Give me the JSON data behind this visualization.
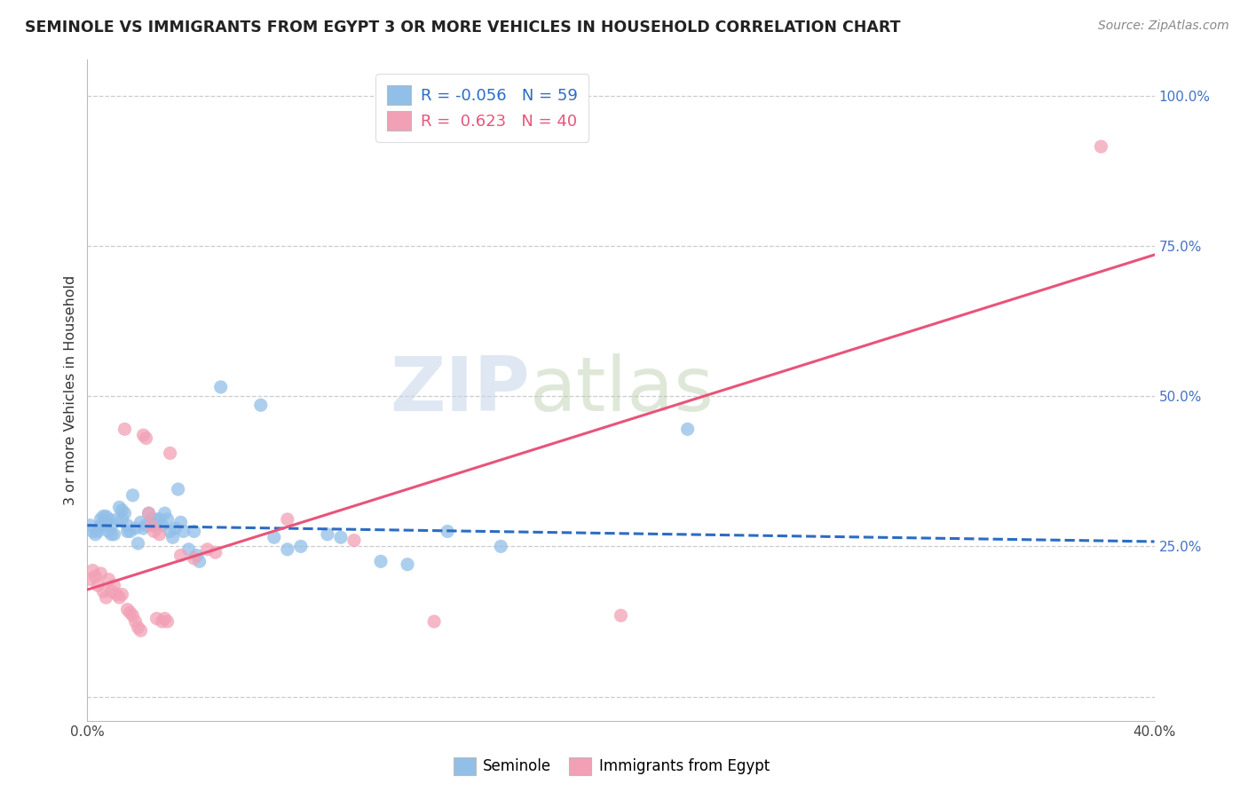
{
  "title": "SEMINOLE VS IMMIGRANTS FROM EGYPT 3 OR MORE VEHICLES IN HOUSEHOLD CORRELATION CHART",
  "source": "Source: ZipAtlas.com",
  "ylabel": "3 or more Vehicles in Household",
  "xmin": 0.0,
  "xmax": 0.4,
  "ymin": -0.04,
  "ymax": 1.06,
  "ytick_vals": [
    0.0,
    0.25,
    0.5,
    0.75,
    1.0
  ],
  "ytick_labels": [
    "",
    "25.0%",
    "50.0%",
    "75.0%",
    "100.0%"
  ],
  "xtick_vals": [
    0.0,
    0.1,
    0.2,
    0.3,
    0.4
  ],
  "xtick_labels": [
    "0.0%",
    "",
    "",
    "",
    "40.0%"
  ],
  "legend_blue_r": "R = -0.056",
  "legend_blue_n": "N = 59",
  "legend_pink_r": "R =  0.623",
  "legend_pink_n": "N = 40",
  "watermark_zip": "ZIP",
  "watermark_atlas": "atlas",
  "seminole_color": "#92BFE8",
  "egypt_color": "#F2A0B5",
  "seminole_line_color": "#2B6CC4",
  "egypt_line_color": "#E8547A",
  "background_color": "#FFFFFF",
  "seminole_dots": [
    [
      0.001,
      0.285
    ],
    [
      0.002,
      0.275
    ],
    [
      0.003,
      0.27
    ],
    [
      0.004,
      0.275
    ],
    [
      0.005,
      0.285
    ],
    [
      0.005,
      0.295
    ],
    [
      0.006,
      0.3
    ],
    [
      0.006,
      0.285
    ],
    [
      0.007,
      0.3
    ],
    [
      0.007,
      0.29
    ],
    [
      0.008,
      0.275
    ],
    [
      0.008,
      0.295
    ],
    [
      0.009,
      0.27
    ],
    [
      0.009,
      0.285
    ],
    [
      0.01,
      0.27
    ],
    [
      0.011,
      0.295
    ],
    [
      0.012,
      0.315
    ],
    [
      0.013,
      0.31
    ],
    [
      0.013,
      0.295
    ],
    [
      0.014,
      0.305
    ],
    [
      0.015,
      0.275
    ],
    [
      0.015,
      0.285
    ],
    [
      0.016,
      0.275
    ],
    [
      0.017,
      0.335
    ],
    [
      0.018,
      0.28
    ],
    [
      0.019,
      0.255
    ],
    [
      0.02,
      0.29
    ],
    [
      0.021,
      0.28
    ],
    [
      0.022,
      0.285
    ],
    [
      0.023,
      0.305
    ],
    [
      0.024,
      0.295
    ],
    [
      0.025,
      0.285
    ],
    [
      0.026,
      0.295
    ],
    [
      0.027,
      0.295
    ],
    [
      0.028,
      0.285
    ],
    [
      0.029,
      0.305
    ],
    [
      0.03,
      0.295
    ],
    [
      0.031,
      0.275
    ],
    [
      0.032,
      0.265
    ],
    [
      0.033,
      0.28
    ],
    [
      0.034,
      0.345
    ],
    [
      0.035,
      0.29
    ],
    [
      0.036,
      0.275
    ],
    [
      0.038,
      0.245
    ],
    [
      0.04,
      0.275
    ],
    [
      0.041,
      0.235
    ],
    [
      0.042,
      0.225
    ],
    [
      0.05,
      0.515
    ],
    [
      0.065,
      0.485
    ],
    [
      0.07,
      0.265
    ],
    [
      0.075,
      0.245
    ],
    [
      0.08,
      0.25
    ],
    [
      0.09,
      0.27
    ],
    [
      0.095,
      0.265
    ],
    [
      0.11,
      0.225
    ],
    [
      0.12,
      0.22
    ],
    [
      0.135,
      0.275
    ],
    [
      0.155,
      0.25
    ],
    [
      0.225,
      0.445
    ]
  ],
  "egypt_dots": [
    [
      0.001,
      0.195
    ],
    [
      0.002,
      0.21
    ],
    [
      0.003,
      0.2
    ],
    [
      0.004,
      0.185
    ],
    [
      0.005,
      0.205
    ],
    [
      0.006,
      0.175
    ],
    [
      0.007,
      0.165
    ],
    [
      0.008,
      0.195
    ],
    [
      0.009,
      0.175
    ],
    [
      0.01,
      0.185
    ],
    [
      0.011,
      0.17
    ],
    [
      0.012,
      0.165
    ],
    [
      0.013,
      0.17
    ],
    [
      0.014,
      0.445
    ],
    [
      0.015,
      0.145
    ],
    [
      0.016,
      0.14
    ],
    [
      0.017,
      0.135
    ],
    [
      0.018,
      0.125
    ],
    [
      0.019,
      0.115
    ],
    [
      0.02,
      0.11
    ],
    [
      0.021,
      0.435
    ],
    [
      0.022,
      0.43
    ],
    [
      0.023,
      0.305
    ],
    [
      0.024,
      0.285
    ],
    [
      0.025,
      0.275
    ],
    [
      0.026,
      0.13
    ],
    [
      0.027,
      0.27
    ],
    [
      0.028,
      0.125
    ],
    [
      0.029,
      0.13
    ],
    [
      0.03,
      0.125
    ],
    [
      0.031,
      0.405
    ],
    [
      0.035,
      0.235
    ],
    [
      0.04,
      0.23
    ],
    [
      0.045,
      0.245
    ],
    [
      0.048,
      0.24
    ],
    [
      0.075,
      0.295
    ],
    [
      0.1,
      0.26
    ],
    [
      0.13,
      0.125
    ],
    [
      0.2,
      0.135
    ],
    [
      0.38,
      0.915
    ]
  ],
  "blue_trend_x": [
    0.0,
    0.4
  ],
  "blue_trend_y": [
    0.285,
    0.258
  ],
  "pink_trend_x": [
    0.0,
    0.4
  ],
  "pink_trend_y": [
    0.178,
    0.735
  ]
}
